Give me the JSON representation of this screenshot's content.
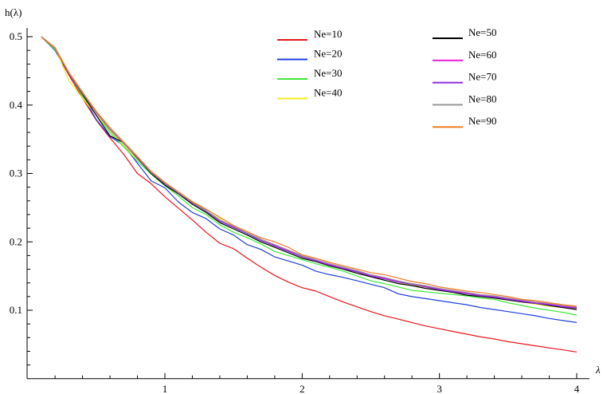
{
  "chart_data": {
    "type": "line",
    "title": "",
    "xlabel": "λ",
    "ylabel": "h(λ)",
    "xlim": [
      0.0,
      4.05
    ],
    "ylim": [
      0.0,
      0.52
    ],
    "x_ticks": [
      1,
      2,
      3,
      4
    ],
    "x_tick_labels": [
      "1",
      "2",
      "3",
      "4"
    ],
    "y_ticks": [
      0.1,
      0.2,
      0.3,
      0.4,
      0.5
    ],
    "y_tick_labels": [
      "0.1",
      "0.2",
      "0.3",
      "0.4",
      "0.5"
    ],
    "grid": false,
    "legend_placement": "top-right (two columns)",
    "x": [
      0.1,
      0.2,
      0.3,
      0.4,
      0.5,
      0.6,
      0.7,
      0.8,
      0.9,
      1.0,
      1.1,
      1.2,
      1.3,
      1.4,
      1.5,
      1.6,
      1.7,
      1.8,
      1.9,
      2.0,
      2.1,
      2.2,
      2.3,
      2.4,
      2.5,
      2.6,
      2.7,
      2.8,
      2.9,
      3.0,
      3.1,
      3.2,
      3.3,
      3.4,
      3.5,
      3.6,
      3.7,
      3.8,
      3.9,
      4.0
    ],
    "series": [
      {
        "name": "Ne=10",
        "color": "#e8141c",
        "values": [
          0.5,
          0.48,
          0.444,
          0.41,
          0.378,
          0.352,
          0.328,
          0.3,
          0.285,
          0.266,
          0.249,
          0.232,
          0.214,
          0.198,
          0.19,
          0.176,
          0.163,
          0.151,
          0.141,
          0.133,
          0.128,
          0.12,
          0.112,
          0.105,
          0.098,
          0.092,
          0.087,
          0.082,
          0.077,
          0.073,
          0.069,
          0.065,
          0.061,
          0.058,
          0.054,
          0.051,
          0.048,
          0.045,
          0.042,
          0.039
        ]
      },
      {
        "name": "Ne=20",
        "color": "#1f3fdc",
        "values": [
          0.5,
          0.48,
          0.446,
          0.415,
          0.379,
          0.354,
          0.341,
          0.315,
          0.289,
          0.279,
          0.258,
          0.243,
          0.234,
          0.219,
          0.21,
          0.196,
          0.189,
          0.178,
          0.172,
          0.166,
          0.157,
          0.152,
          0.148,
          0.143,
          0.138,
          0.133,
          0.124,
          0.12,
          0.117,
          0.114,
          0.111,
          0.108,
          0.104,
          0.101,
          0.098,
          0.095,
          0.092,
          0.088,
          0.085,
          0.082
        ]
      },
      {
        "name": "Ne=30",
        "color": "#3ee83a",
        "values": [
          0.5,
          0.481,
          0.447,
          0.413,
          0.386,
          0.36,
          0.339,
          0.318,
          0.299,
          0.282,
          0.267,
          0.25,
          0.24,
          0.225,
          0.214,
          0.206,
          0.197,
          0.186,
          0.18,
          0.174,
          0.168,
          0.163,
          0.157,
          0.15,
          0.143,
          0.139,
          0.134,
          0.129,
          0.127,
          0.125,
          0.123,
          0.121,
          0.118,
          0.116,
          0.111,
          0.107,
          0.103,
          0.1,
          0.097,
          0.093
        ]
      },
      {
        "name": "Ne=40",
        "color": "#f2ee1a",
        "values": [
          0.5,
          0.484,
          0.436,
          0.41,
          0.386,
          0.363,
          0.341,
          0.321,
          0.303,
          0.283,
          0.27,
          0.256,
          0.245,
          0.234,
          0.221,
          0.213,
          0.203,
          0.196,
          0.188,
          0.179,
          0.172,
          0.166,
          0.161,
          0.156,
          0.149,
          0.146,
          0.141,
          0.136,
          0.134,
          0.129,
          0.127,
          0.124,
          0.121,
          0.119,
          0.115,
          0.112,
          0.109,
          0.106,
          0.104,
          0.102
        ]
      },
      {
        "name": "Ne=50",
        "color": "#000000",
        "values": [
          0.5,
          0.483,
          0.446,
          0.416,
          0.385,
          0.355,
          0.345,
          0.322,
          0.3,
          0.283,
          0.27,
          0.255,
          0.243,
          0.228,
          0.219,
          0.21,
          0.2,
          0.192,
          0.184,
          0.176,
          0.171,
          0.165,
          0.16,
          0.154,
          0.149,
          0.144,
          0.139,
          0.136,
          0.132,
          0.129,
          0.126,
          0.122,
          0.12,
          0.118,
          0.115,
          0.112,
          0.11,
          0.107,
          0.104,
          0.101
        ]
      },
      {
        "name": "Ne=60",
        "color": "#e81ad8",
        "values": [
          0.5,
          0.484,
          0.447,
          0.418,
          0.39,
          0.365,
          0.345,
          0.324,
          0.302,
          0.286,
          0.272,
          0.258,
          0.246,
          0.231,
          0.222,
          0.213,
          0.202,
          0.195,
          0.187,
          0.178,
          0.173,
          0.167,
          0.162,
          0.157,
          0.151,
          0.147,
          0.142,
          0.139,
          0.135,
          0.131,
          0.128,
          0.125,
          0.122,
          0.12,
          0.117,
          0.114,
          0.111,
          0.109,
          0.106,
          0.104
        ]
      },
      {
        "name": "Ne=70",
        "color": "#8a2be2",
        "values": [
          0.5,
          0.483,
          0.446,
          0.417,
          0.389,
          0.364,
          0.344,
          0.323,
          0.301,
          0.285,
          0.271,
          0.257,
          0.245,
          0.23,
          0.221,
          0.212,
          0.202,
          0.194,
          0.186,
          0.178,
          0.172,
          0.166,
          0.161,
          0.156,
          0.15,
          0.146,
          0.141,
          0.138,
          0.134,
          0.13,
          0.127,
          0.124,
          0.121,
          0.119,
          0.116,
          0.113,
          0.11,
          0.108,
          0.105,
          0.103
        ]
      },
      {
        "name": "Ne=80",
        "color": "#999999",
        "values": [
          0.5,
          0.483,
          0.447,
          0.418,
          0.39,
          0.365,
          0.345,
          0.324,
          0.302,
          0.286,
          0.272,
          0.258,
          0.246,
          0.232,
          0.223,
          0.213,
          0.204,
          0.196,
          0.188,
          0.18,
          0.174,
          0.168,
          0.163,
          0.158,
          0.152,
          0.148,
          0.143,
          0.139,
          0.136,
          0.132,
          0.129,
          0.126,
          0.123,
          0.121,
          0.118,
          0.115,
          0.112,
          0.11,
          0.107,
          0.105
        ]
      },
      {
        "name": "Ne=90",
        "color": "#f07a1e",
        "values": [
          0.5,
          0.484,
          0.448,
          0.419,
          0.391,
          0.367,
          0.346,
          0.325,
          0.303,
          0.287,
          0.273,
          0.259,
          0.248,
          0.236,
          0.224,
          0.215,
          0.206,
          0.2,
          0.192,
          0.181,
          0.176,
          0.17,
          0.165,
          0.16,
          0.155,
          0.152,
          0.147,
          0.142,
          0.139,
          0.134,
          0.131,
          0.128,
          0.126,
          0.123,
          0.12,
          0.116,
          0.114,
          0.111,
          0.108,
          0.106
        ]
      }
    ]
  }
}
